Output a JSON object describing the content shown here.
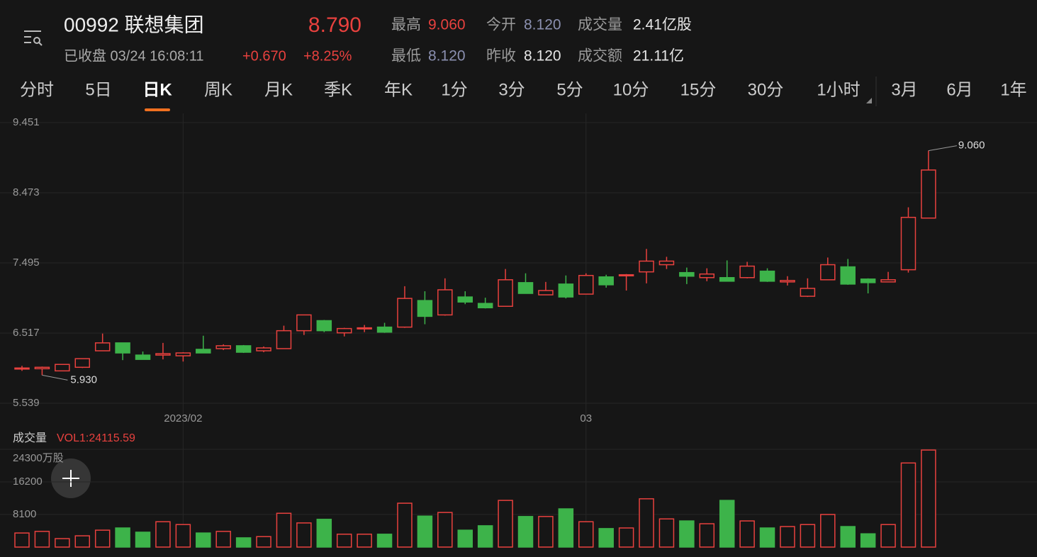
{
  "header": {
    "name": "00992 联想集团",
    "price": "8.790",
    "status": "已收盘 03/24 16:08:11",
    "change": "+0.670",
    "change_pct": "+8.25%",
    "stats": [
      {
        "label": "最高",
        "value": "9.060",
        "color": "#e8413e"
      },
      {
        "label": "今开",
        "value": "8.120",
        "color": "#8b90b0"
      },
      {
        "label": "成交量",
        "value": "2.41亿股",
        "color": "#e6e6e6"
      },
      {
        "label": "最低",
        "value": "8.120",
        "color": "#8b90b0"
      },
      {
        "label": "昨收",
        "value": "8.120",
        "color": "#e6e6e6"
      },
      {
        "label": "成交额",
        "value": "21.11亿",
        "color": "#e6e6e6"
      }
    ]
  },
  "tabs": [
    "分时",
    "5日",
    "日K",
    "周K",
    "月K",
    "季K",
    "年K",
    "1分",
    "3分",
    "5分",
    "10分",
    "15分",
    "30分",
    "1小时",
    "3月",
    "6月",
    "1年"
  ],
  "active_tab": "日K",
  "chart_data": [
    {
      "type": "candlestick",
      "up_color": "#e8413e",
      "down_color": "#3db34a",
      "categories": [
        null,
        null,
        null,
        null,
        null,
        null,
        null,
        null,
        "2023/02",
        null,
        null,
        null,
        null,
        null,
        null,
        null,
        null,
        null,
        null,
        null,
        null,
        null,
        null,
        null,
        null,
        null,
        null,
        null,
        "03",
        null,
        null,
        null,
        null,
        null,
        null,
        null,
        null,
        null,
        null,
        null,
        null,
        null,
        null,
        null,
        null,
        null
      ],
      "open": [
        6.02,
        6.02,
        5.99,
        6.04,
        6.27,
        6.38,
        6.21,
        6.21,
        6.2,
        6.29,
        6.3,
        6.34,
        6.27,
        6.3,
        6.55,
        6.69,
        6.52,
        6.58,
        6.6,
        6.6,
        6.97,
        6.77,
        7.02,
        6.93,
        6.89,
        7.22,
        7.05,
        7.2,
        7.06,
        7.3,
        7.32,
        7.37,
        7.47,
        7.36,
        7.29,
        7.29,
        7.29,
        7.38,
        7.23,
        7.03,
        7.26,
        7.44,
        7.27,
        7.23,
        7.4,
        8.12
      ],
      "close": [
        6.03,
        6.04,
        6.08,
        6.16,
        6.38,
        6.24,
        6.15,
        6.23,
        6.24,
        6.24,
        6.34,
        6.25,
        6.31,
        6.55,
        6.77,
        6.55,
        6.58,
        6.59,
        6.53,
        7.0,
        6.75,
        7.12,
        6.95,
        6.87,
        7.26,
        7.07,
        7.11,
        7.02,
        7.32,
        7.19,
        7.33,
        7.52,
        7.52,
        7.31,
        7.34,
        7.24,
        7.45,
        7.24,
        7.25,
        7.14,
        7.47,
        7.2,
        7.22,
        7.26,
        8.13,
        8.79
      ],
      "high": [
        6.06,
        6.05,
        6.08,
        6.16,
        6.51,
        6.38,
        6.26,
        6.38,
        6.25,
        6.48,
        6.36,
        6.35,
        6.33,
        6.62,
        6.77,
        6.7,
        6.59,
        6.63,
        6.66,
        7.17,
        7.1,
        7.28,
        7.1,
        7.01,
        7.41,
        7.35,
        7.23,
        7.32,
        7.35,
        7.33,
        7.34,
        7.69,
        7.58,
        7.43,
        7.42,
        7.53,
        7.51,
        7.42,
        7.31,
        7.28,
        7.57,
        7.55,
        7.28,
        7.37,
        8.27,
        9.06
      ],
      "low": [
        5.99,
        5.93,
        5.99,
        6.03,
        6.27,
        6.14,
        6.15,
        6.15,
        6.12,
        6.24,
        6.28,
        6.24,
        6.25,
        6.3,
        6.49,
        6.53,
        6.47,
        6.53,
        6.52,
        6.59,
        6.64,
        6.76,
        6.92,
        6.86,
        6.89,
        7.07,
        7.05,
        7.0,
        7.06,
        7.15,
        7.11,
        7.21,
        7.41,
        7.2,
        7.24,
        7.24,
        7.28,
        7.23,
        7.18,
        7.02,
        7.26,
        7.19,
        7.07,
        7.23,
        7.36,
        8.12
      ],
      "max_label": "9.060",
      "min_label": "5.930",
      "ylim": [
        5.539,
        9.451
      ],
      "yticks": [
        9.451,
        8.473,
        7.495,
        6.517,
        5.539
      ],
      "grid": true
    },
    {
      "type": "volume",
      "title": "成交量",
      "subtitle": "VOL1:24115.59",
      "values": [
        3500,
        3900,
        2100,
        2800,
        4200,
        4750,
        3700,
        6300,
        5600,
        3500,
        3900,
        2300,
        2600,
        8400,
        6000,
        6900,
        3200,
        3200,
        3200,
        10900,
        7700,
        8600,
        4200,
        5300,
        11600,
        7600,
        7600,
        9500,
        6300,
        4600,
        4750,
        12000,
        7000,
        6500,
        5800,
        11600,
        6500,
        4750,
        5100,
        5600,
        8100,
        5100,
        3300,
        5600,
        20900,
        24115.59
      ],
      "ylim": [
        0,
        24300
      ],
      "yticks": [
        {
          "value": 24300,
          "label": "24300万股"
        },
        16200,
        8100
      ],
      "grid": true
    }
  ]
}
